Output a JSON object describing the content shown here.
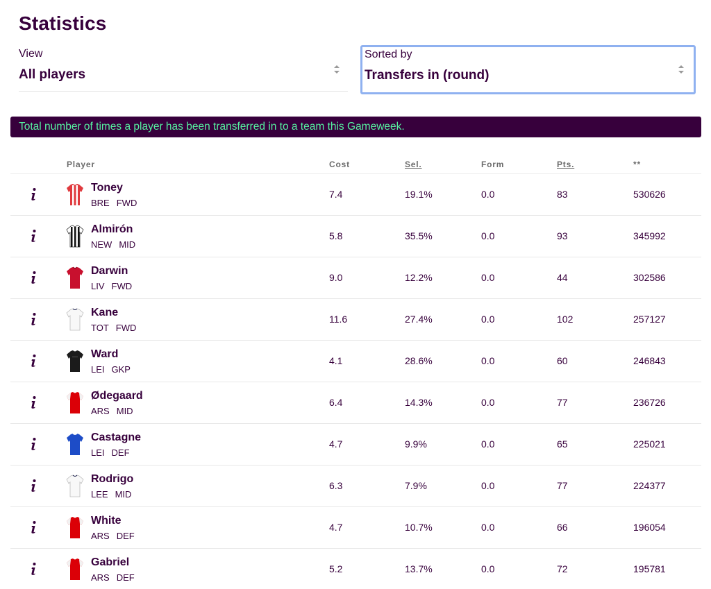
{
  "page": {
    "title": "Statistics"
  },
  "filters": {
    "view": {
      "label": "View",
      "value": "All players"
    },
    "sort": {
      "label": "Sorted by",
      "value": "Transfers in (round)"
    }
  },
  "banner": {
    "text": "Total number of times a player has been transferred in to a team this Gameweek."
  },
  "table": {
    "headers": {
      "player": "Player",
      "cost": "Cost",
      "sel": "Sel.",
      "form": "Form",
      "pts": "Pts.",
      "transfers": "**"
    },
    "rows": [
      {
        "name": "Toney",
        "team": "BRE",
        "pos": "FWD",
        "cost": "7.4",
        "sel": "19.1%",
        "form": "0.0",
        "pts": "83",
        "transfers": "530626",
        "kit": "stripes-red-white"
      },
      {
        "name": "Almirón",
        "team": "NEW",
        "pos": "MID",
        "cost": "5.8",
        "sel": "35.5%",
        "form": "0.0",
        "pts": "93",
        "transfers": "345992",
        "kit": "stripes-black-white"
      },
      {
        "name": "Darwin",
        "team": "LIV",
        "pos": "FWD",
        "cost": "9.0",
        "sel": "12.2%",
        "form": "0.0",
        "pts": "44",
        "transfers": "302586",
        "kit": "solid-red"
      },
      {
        "name": "Kane",
        "team": "TOT",
        "pos": "FWD",
        "cost": "11.6",
        "sel": "27.4%",
        "form": "0.0",
        "pts": "102",
        "transfers": "257127",
        "kit": "solid-white"
      },
      {
        "name": "Ward",
        "team": "LEI",
        "pos": "GKP",
        "cost": "4.1",
        "sel": "28.6%",
        "form": "0.0",
        "pts": "60",
        "transfers": "246843",
        "kit": "solid-black"
      },
      {
        "name": "Ødegaard",
        "team": "ARS",
        "pos": "MID",
        "cost": "6.4",
        "sel": "14.3%",
        "form": "0.0",
        "pts": "77",
        "transfers": "236726",
        "kit": "red-white-sleeves"
      },
      {
        "name": "Castagne",
        "team": "LEI",
        "pos": "DEF",
        "cost": "4.7",
        "sel": "9.9%",
        "form": "0.0",
        "pts": "65",
        "transfers": "225021",
        "kit": "solid-blue"
      },
      {
        "name": "Rodrigo",
        "team": "LEE",
        "pos": "MID",
        "cost": "6.3",
        "sel": "7.9%",
        "form": "0.0",
        "pts": "77",
        "transfers": "224377",
        "kit": "solid-white"
      },
      {
        "name": "White",
        "team": "ARS",
        "pos": "DEF",
        "cost": "4.7",
        "sel": "10.7%",
        "form": "0.0",
        "pts": "66",
        "transfers": "196054",
        "kit": "red-white-sleeves"
      },
      {
        "name": "Gabriel",
        "team": "ARS",
        "pos": "DEF",
        "cost": "5.2",
        "sel": "13.7%",
        "form": "0.0",
        "pts": "72",
        "transfers": "195781",
        "kit": "red-white-sleeves"
      }
    ]
  },
  "colors": {
    "primary": "#37003c",
    "banner_text": "#56f1a0",
    "focus_border": "#8fb1f0"
  }
}
